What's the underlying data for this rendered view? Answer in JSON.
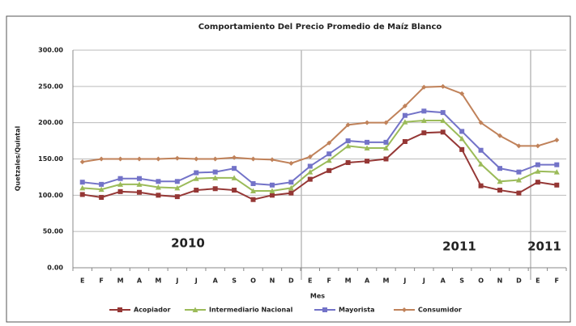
{
  "chart_data": {
    "type": "line",
    "title": "Comportamiento Del Precio Promedio de Maíz Blanco",
    "y_label": "Quetzales/Quintal",
    "x_label": "Mes",
    "categories": [
      "E",
      "F",
      "M",
      "A",
      "M",
      "J",
      "J",
      "A",
      "S",
      "O",
      "N",
      "D",
      "E",
      "F",
      "M",
      "A",
      "M",
      "J",
      "J",
      "A",
      "S",
      "O",
      "N",
      "D",
      "E",
      "F"
    ],
    "ylim": [
      0,
      300
    ],
    "yticks": [
      {
        "value": 0,
        "label": "0.00"
      },
      {
        "value": 50,
        "label": "50.00"
      },
      {
        "value": 100,
        "label": "100.00"
      },
      {
        "value": 150,
        "label": "150.00"
      },
      {
        "value": 200,
        "label": "200.00"
      },
      {
        "value": 250,
        "label": "250.00"
      },
      {
        "value": 300,
        "label": "300.00"
      }
    ],
    "grid": true,
    "annotations": [
      "2010",
      "2011",
      "2011"
    ],
    "series": [
      {
        "name": "Acopiador",
        "color": "#953735",
        "marker": "square",
        "values": [
          101,
          97,
          105,
          104,
          100,
          98,
          107,
          109,
          107,
          94,
          100,
          103,
          122,
          134,
          145,
          147,
          150,
          174,
          186,
          187,
          163,
          113,
          107,
          103,
          118,
          114
        ]
      },
      {
        "name": "Intermediario Nacional",
        "color": "#9bbb59",
        "marker": "triangle",
        "values": [
          110,
          108,
          115,
          115,
          111,
          110,
          123,
          124,
          124,
          106,
          106,
          110,
          132,
          148,
          168,
          165,
          165,
          201,
          203,
          203,
          178,
          143,
          119,
          121,
          133,
          132
        ]
      },
      {
        "name": "Mayorista",
        "color": "#7373c8",
        "marker": "square",
        "values": [
          118,
          115,
          123,
          123,
          119,
          119,
          131,
          132,
          137,
          116,
          114,
          118,
          140,
          157,
          175,
          173,
          173,
          210,
          216,
          214,
          188,
          162,
          137,
          132,
          142,
          142
        ]
      },
      {
        "name": "Consumidor",
        "color": "#c0825a",
        "marker": "diamond",
        "values": [
          146,
          150,
          150,
          150,
          150,
          151,
          150,
          150,
          152,
          150,
          149,
          144,
          153,
          172,
          197,
          200,
          200,
          223,
          249,
          250,
          240,
          200,
          182,
          168,
          168,
          176
        ]
      }
    ]
  }
}
